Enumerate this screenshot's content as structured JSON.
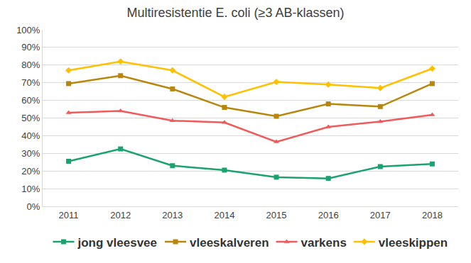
{
  "chart_data": {
    "type": "line",
    "title": "Multiresistentie E. coli (≥3 AB-klassen)",
    "categories": [
      "2011",
      "2012",
      "2013",
      "2014",
      "2015",
      "2016",
      "2017",
      "2018"
    ],
    "series": [
      {
        "name": "jong vleesvee",
        "color": "#1aa36f",
        "marker": "square",
        "values": [
          25.5,
          32.5,
          23,
          20.5,
          16.5,
          15.8,
          22.5,
          24
        ]
      },
      {
        "name": "vleeskalveren",
        "color": "#b8860b",
        "marker": "square",
        "values": [
          69.5,
          74,
          66.5,
          56,
          51,
          58,
          56.5,
          69.5
        ]
      },
      {
        "name": "varkens",
        "color": "#f05a5a",
        "marker": "triangle",
        "values": [
          53,
          54,
          48.5,
          47.5,
          36.5,
          45,
          48,
          51.8
        ]
      },
      {
        "name": "vleeskippen",
        "color": "#ffc000",
        "marker": "diamond",
        "values": [
          77,
          82,
          77,
          62,
          70.5,
          69,
          67,
          78
        ]
      }
    ],
    "ylim": [
      0,
      100
    ],
    "yticks": [
      {
        "value": 0,
        "label": "0%"
      },
      {
        "value": 10,
        "label": "10%"
      },
      {
        "value": 20,
        "label": "20%"
      },
      {
        "value": 30,
        "label": "30%"
      },
      {
        "value": 40,
        "label": "40%"
      },
      {
        "value": 50,
        "label": "50%"
      },
      {
        "value": 60,
        "label": "60%"
      },
      {
        "value": 70,
        "label": "70%"
      },
      {
        "value": 80,
        "label": "80%"
      },
      {
        "value": 90,
        "label": "90%"
      },
      {
        "value": 100,
        "label": "100%"
      }
    ],
    "grid": true,
    "legend": "bottom"
  }
}
